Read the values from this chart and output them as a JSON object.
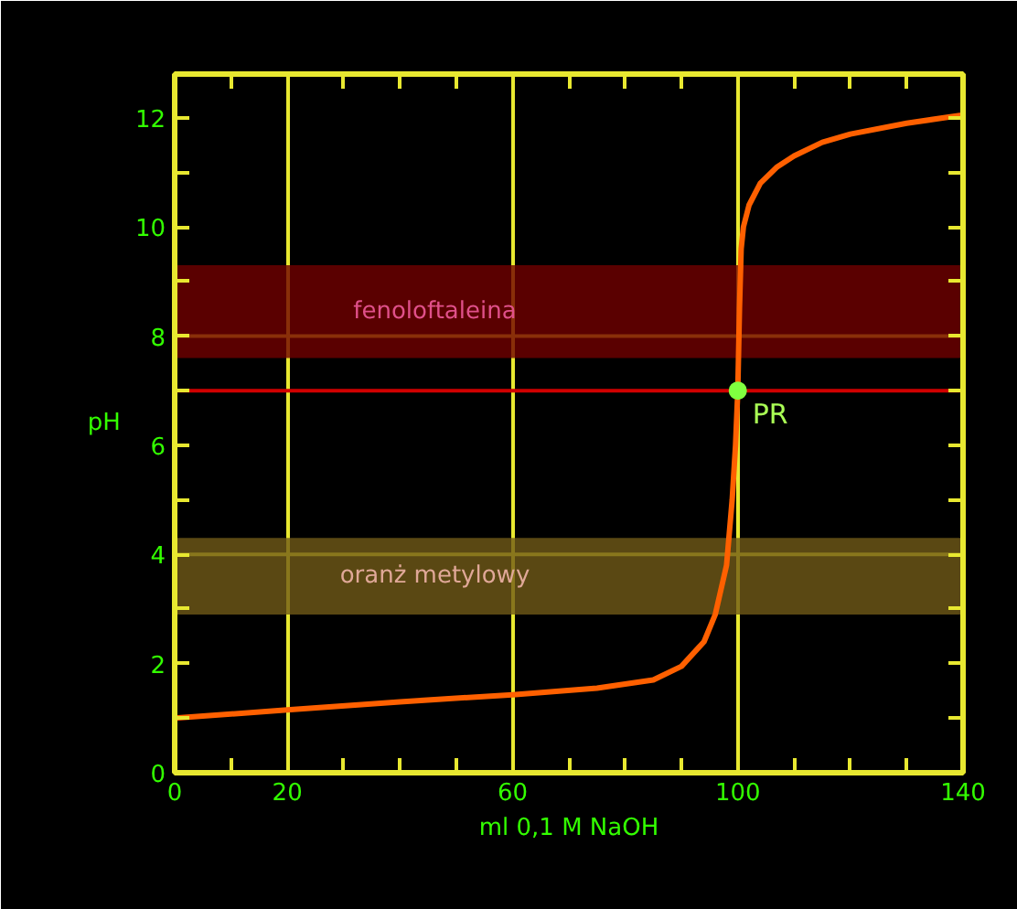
{
  "chart_data": {
    "type": "line",
    "xlabel": "ml 0,1 M NaOH",
    "ylabel": "pH",
    "xlim": [
      0,
      140
    ],
    "ylim": [
      0,
      12.8
    ],
    "xticks": [
      0,
      {
        "value": 10,
        "label": null
      },
      20,
      {
        "value": 30,
        "label": null
      },
      {
        "value": 40,
        "label": null
      },
      {
        "value": 50,
        "label": null
      },
      60,
      {
        "value": 70,
        "label": null
      },
      {
        "value": 80,
        "label": null
      },
      {
        "value": 90,
        "label": null
      },
      100,
      {
        "value": 110,
        "label": null
      },
      {
        "value": 120,
        "label": null
      },
      {
        "value": 130,
        "label": null
      },
      140
    ],
    "yticks": [
      0,
      {
        "value": 1,
        "label": null
      },
      2,
      {
        "value": 3,
        "label": null
      },
      4,
      {
        "value": 5,
        "label": null
      },
      6,
      {
        "value": 7,
        "label": null
      },
      8,
      {
        "value": 9,
        "label": null
      },
      10,
      {
        "value": 11,
        "label": null
      },
      12
    ],
    "grid": "x",
    "series": [
      {
        "color": "#ff6000",
        "line_style": "solid",
        "marker": "none",
        "x": [
          0,
          20,
          40,
          60,
          75,
          85,
          90,
          94,
          96,
          98,
          99,
          99.6,
          100,
          100.3,
          100.6,
          101,
          102,
          104,
          107,
          110,
          115,
          120,
          130,
          140
        ],
        "values": [
          1.0,
          1.15,
          1.3,
          1.43,
          1.55,
          1.7,
          1.95,
          2.4,
          2.9,
          3.8,
          5.0,
          6.0,
          7.0,
          8.5,
          9.6,
          10.0,
          10.4,
          10.8,
          11.1,
          11.3,
          11.55,
          11.7,
          11.9,
          12.05
        ]
      },
      {
        "type": "scatter",
        "color": "#80ff40",
        "marker": "circle",
        "x": [
          100
        ],
        "values": [
          7
        ]
      }
    ],
    "ref_lines": [
      {
        "axis": "y",
        "value": 7,
        "color": "#d00000"
      },
      {
        "axis": "y",
        "value": 4,
        "color": "#e8e830"
      },
      {
        "axis": "y",
        "value": 8,
        "color": "#e8e830"
      }
    ],
    "bands": [
      {
        "axis": "y",
        "from": 7.6,
        "to": 9.3,
        "label": "fenoloftaleina",
        "color": "#700000"
      },
      {
        "axis": "y",
        "from": 2.9,
        "to": 4.3,
        "label": "oranż metylowy",
        "color": "#705a18"
      }
    ],
    "annotations": [
      {
        "text": "PR",
        "x": 100,
        "y": 7
      }
    ]
  }
}
